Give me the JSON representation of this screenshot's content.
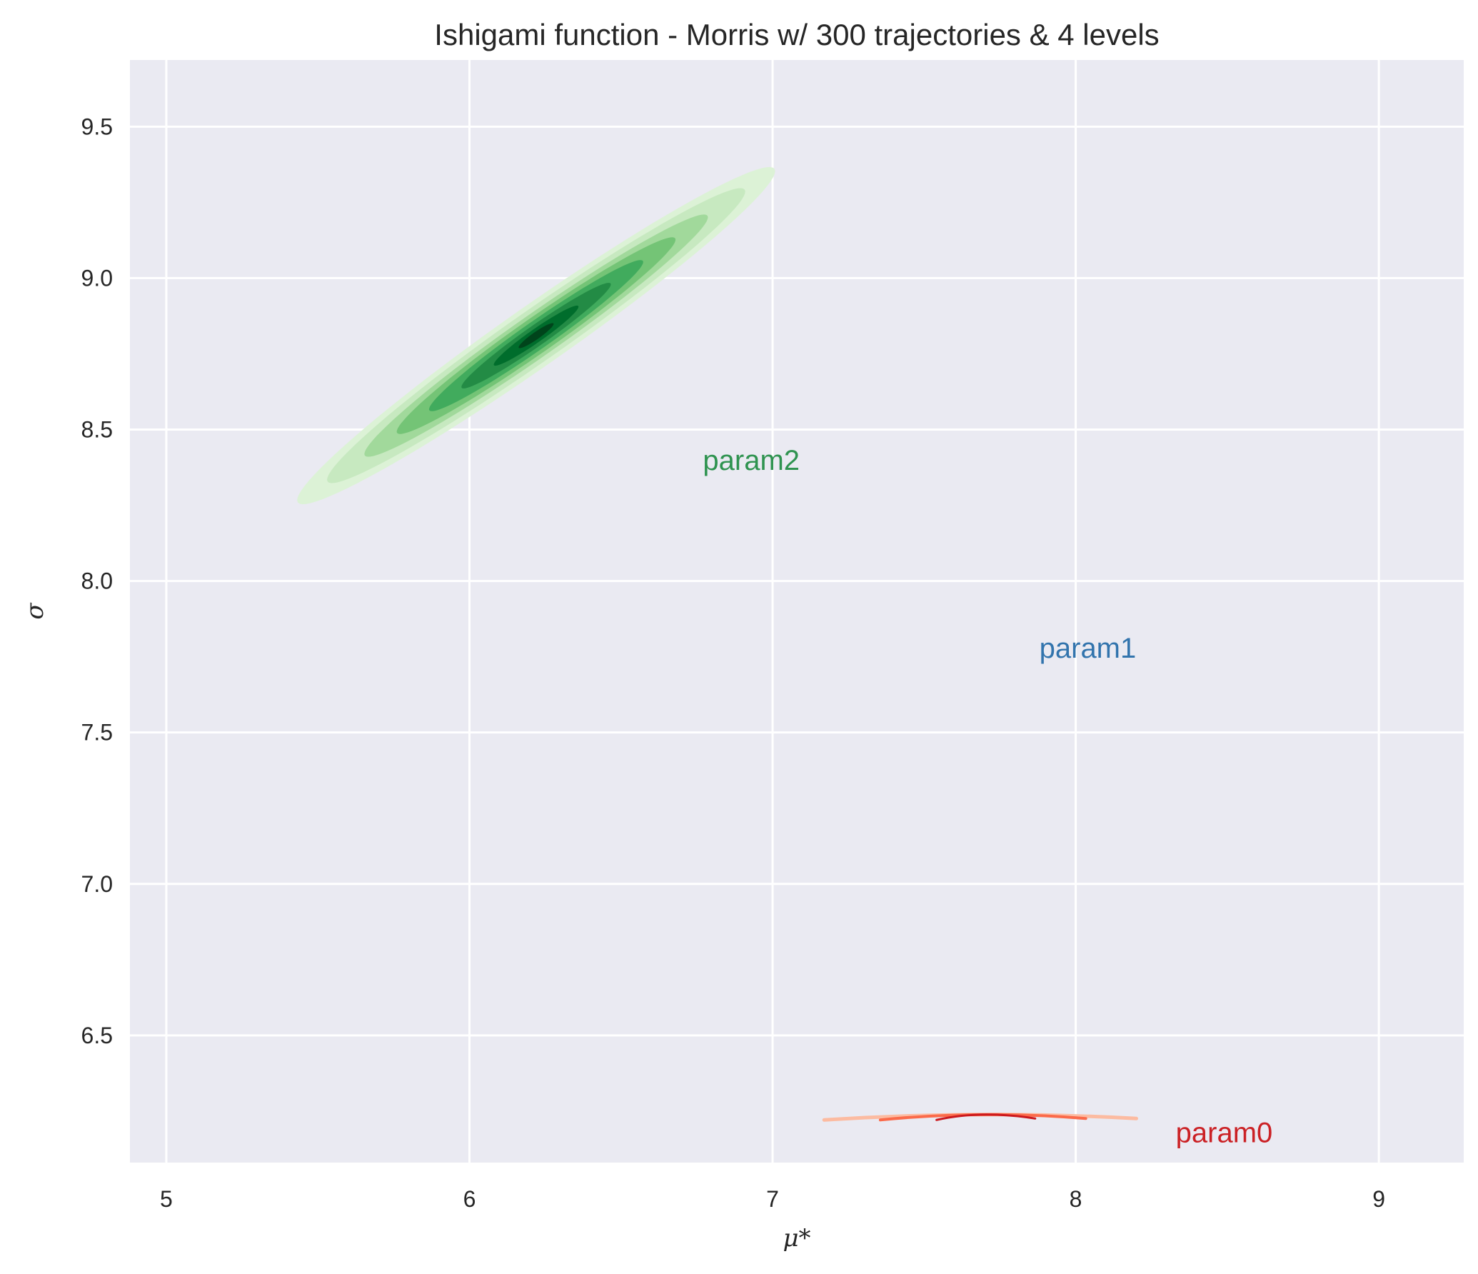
{
  "chart_data": {
    "type": "kde-contour",
    "title": "Ishigami function - Morris w/ 300 trajectories & 4 levels",
    "xlabel": "μ*",
    "ylabel": "σ",
    "xlim": [
      4.88,
      9.28
    ],
    "ylim": [
      6.08,
      9.72
    ],
    "xticks": [
      "5",
      "6",
      "7",
      "8",
      "9"
    ],
    "yticks": [
      "6.5",
      "7.0",
      "7.5",
      "8.0",
      "8.5",
      "9.0",
      "9.5"
    ],
    "grid": true,
    "background": "#eaeaf2",
    "series": [
      {
        "name": "param2",
        "colormap": "Greens",
        "label_color": "#2f9350",
        "label_pos": [
          6.77,
          8.4
        ],
        "center": [
          6.22,
          8.81
        ],
        "major_axis_angle_deg": 35,
        "levels": [
          {
            "level": 1,
            "color": "#dcf2d6",
            "semi_major": 0.96,
            "semi_minor": 0.1
          },
          {
            "level": 2,
            "color": "#c7e9c0",
            "semi_major": 0.84,
            "semi_minor": 0.085
          },
          {
            "level": 3,
            "color": "#a1d99b",
            "semi_major": 0.69,
            "semi_minor": 0.07
          },
          {
            "level": 4,
            "color": "#74c476",
            "semi_major": 0.56,
            "semi_minor": 0.058
          },
          {
            "level": 5,
            "color": "#41ab5d",
            "semi_major": 0.43,
            "semi_minor": 0.046
          },
          {
            "level": 6,
            "color": "#238b45",
            "semi_major": 0.3,
            "semi_minor": 0.034
          },
          {
            "level": 7,
            "color": "#006d2c",
            "semi_major": 0.17,
            "semi_minor": 0.022
          },
          {
            "level": 8,
            "color": "#00441b",
            "semi_major": 0.07,
            "semi_minor": 0.012
          }
        ]
      },
      {
        "name": "param1",
        "colormap": "Blues",
        "label_color": "#3274ad",
        "label_pos": [
          7.88,
          7.78
        ],
        "levels": []
      },
      {
        "name": "param0",
        "colormap": "Reds",
        "label_color": "#cb2125",
        "label_pos": [
          8.33,
          6.18
        ],
        "x_range": [
          7.17,
          8.2
        ],
        "y_center": 6.235,
        "colors": [
          "#fcbba1",
          "#fb6a4a",
          "#cb181d"
        ]
      }
    ]
  }
}
